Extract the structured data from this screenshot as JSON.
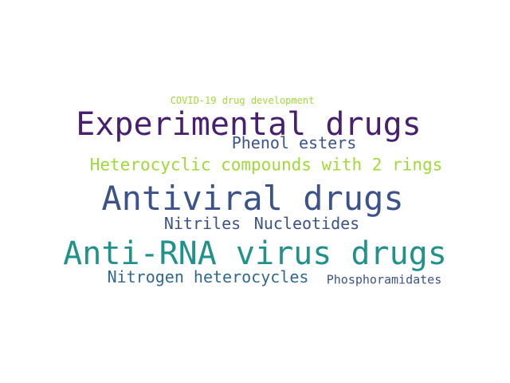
{
  "words": [
    {
      "key": "covid",
      "text": "COVID-19 drug development",
      "color": "#a0da39"
    },
    {
      "key": "exp",
      "text": "Experimental drugs",
      "color": "#481f70"
    },
    {
      "key": "phenol",
      "text": "Phenol esters",
      "color": "#3b528b"
    },
    {
      "key": "hetero",
      "text": "Heterocyclic compounds with 2 rings",
      "color": "#a0da39"
    },
    {
      "key": "antiviral",
      "text": "Antiviral drugs",
      "color": "#3b528b"
    },
    {
      "key": "nitriles",
      "text": "Nitriles",
      "color": "#3b528b"
    },
    {
      "key": "nucleo",
      "text": "Nucleotides",
      "color": "#3b528b"
    },
    {
      "key": "antirna",
      "text": "Anti-RNA virus drugs",
      "color": "#21918c"
    },
    {
      "key": "nitrogen",
      "text": "Nitrogen heterocycles",
      "color": "#31688e"
    },
    {
      "key": "phospho",
      "text": "Phosphoramidates",
      "color": "#3b528b"
    }
  ]
}
